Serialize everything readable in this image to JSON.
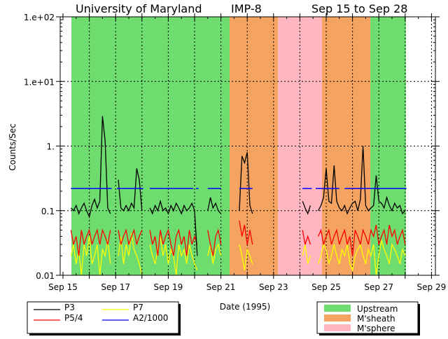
{
  "chart_data": {
    "type": "line",
    "title_parts": [
      "University of Maryland",
      "IMP-8",
      "Sep 15 to Sep 28"
    ],
    "xlabel": "Date (1995)",
    "ylabel": "Counts/Sec",
    "yscale": "log",
    "ylim": [
      0.01,
      100
    ],
    "xlim_days": [
      0,
      14
    ],
    "yticks": [
      {
        "v": 100,
        "label": "1.e+02"
      },
      {
        "v": 10,
        "label": "1.e+01"
      },
      {
        "v": 1,
        "label": "1."
      },
      {
        "v": 0.1,
        "label": "0.1"
      },
      {
        "v": 0.01,
        "label": "0.01"
      }
    ],
    "xticks": [
      {
        "d": 0,
        "label": "Sep 15"
      },
      {
        "d": 2,
        "label": "Sep 17"
      },
      {
        "d": 4,
        "label": "Sep 19"
      },
      {
        "d": 6,
        "label": "Sep 21"
      },
      {
        "d": 8,
        "label": "Sep 23"
      },
      {
        "d": 10,
        "label": "Sep 25"
      },
      {
        "d": 12,
        "label": "Sep 27"
      },
      {
        "d": 14,
        "label": "Sep 29"
      }
    ],
    "grid": true,
    "regions": [
      {
        "type": "Upstream",
        "from": 0.32,
        "to": 6.33
      },
      {
        "type": "M'sheath",
        "from": 6.33,
        "to": 8.17
      },
      {
        "type": "M'sphere",
        "from": 8.17,
        "to": 9.84
      },
      {
        "type": "M'sheath",
        "from": 9.84,
        "to": 11.68
      },
      {
        "type": "Upstream",
        "from": 11.68,
        "to": 13.03
      }
    ],
    "region_legend": [
      {
        "label": "Upstream",
        "color": "#6edc6e"
      },
      {
        "label": "M'sheath",
        "color": "#f4a460"
      },
      {
        "label": "M'sphere",
        "color": "#ffb6c1"
      }
    ],
    "x_start_days": 0.3,
    "x_step_days": 0.1,
    "series": [
      {
        "name": "P3",
        "color": "#000000",
        "values": [
          0.11,
          0.1,
          0.12,
          0.09,
          0.11,
          0.13,
          0.1,
          0.08,
          0.12,
          0.15,
          0.11,
          0.14,
          2.9,
          1.2,
          0.11,
          0.09,
          null,
          null,
          0.3,
          0.11,
          0.1,
          0.12,
          0.1,
          0.13,
          0.11,
          0.45,
          0.3,
          0.1,
          null,
          null,
          0.11,
          0.09,
          0.12,
          0.1,
          0.14,
          0.1,
          0.11,
          0.09,
          0.12,
          0.1,
          0.13,
          0.11,
          0.09,
          0.12,
          0.1,
          0.11,
          0.13,
          0.1,
          0.02,
          null,
          null,
          null,
          0.1,
          0.16,
          0.11,
          0.13,
          0.1,
          0.09,
          null,
          null,
          null,
          null,
          null,
          null,
          0.1,
          0.7,
          0.55,
          0.8,
          0.12,
          0.09,
          null,
          null,
          null,
          null,
          null,
          null,
          null,
          null,
          null,
          null,
          null,
          null,
          null,
          null,
          null,
          null,
          null,
          null,
          0.14,
          0.11,
          0.09,
          0.12,
          null,
          null,
          0.1,
          0.12,
          0.16,
          0.45,
          0.14,
          0.13,
          0.5,
          0.14,
          0.11,
          0.1,
          0.12,
          0.09,
          0.11,
          0.13,
          0.14,
          0.1,
          0.15,
          1.0,
          0.12,
          0.1,
          0.11,
          0.12,
          0.35,
          0.14,
          0.13,
          0.11,
          0.16,
          0.12,
          0.1,
          0.13,
          0.11,
          0.12,
          0.09,
          0.1
        ]
      },
      {
        "name": "P5/4",
        "color": "#ff0000",
        "values": [
          0.05,
          0.03,
          0.04,
          0.02,
          0.05,
          0.03,
          0.04,
          0.05,
          0.03,
          0.04,
          0.05,
          0.03,
          0.05,
          0.04,
          0.03,
          0.05,
          null,
          null,
          0.05,
          0.03,
          0.04,
          0.05,
          0.03,
          0.04,
          0.05,
          0.03,
          0.04,
          0.05,
          null,
          null,
          0.05,
          0.03,
          0.04,
          0.02,
          0.05,
          0.03,
          0.04,
          0.05,
          0.03,
          0.02,
          0.04,
          0.05,
          0.03,
          0.04,
          0.02,
          0.05,
          0.03,
          0.04,
          0.03,
          null,
          null,
          null,
          0.05,
          0.03,
          0.02,
          0.04,
          0.05,
          0.03,
          null,
          null,
          null,
          null,
          null,
          null,
          0.07,
          0.04,
          0.06,
          0.03,
          0.05,
          0.03,
          null,
          null,
          null,
          null,
          null,
          null,
          null,
          null,
          null,
          null,
          null,
          null,
          null,
          null,
          null,
          null,
          null,
          null,
          0.05,
          0.03,
          0.04,
          0.03,
          null,
          null,
          0.04,
          0.05,
          0.03,
          0.04,
          0.05,
          0.03,
          0.04,
          0.05,
          0.03,
          0.04,
          0.05,
          0.03,
          0.04,
          0.02,
          0.05,
          0.04,
          0.03,
          0.05,
          0.04,
          0.03,
          0.05,
          0.04,
          0.06,
          0.03,
          0.04,
          0.05,
          0.03,
          0.06,
          0.04,
          0.05,
          0.03,
          0.04,
          0.05,
          0.03
        ]
      },
      {
        "name": "P7",
        "color": "#ffff00",
        "values": [
          0.02,
          0.03,
          0.015,
          0.025,
          0.01,
          0.03,
          0.02,
          0.04,
          0.015,
          0.02,
          0.03,
          0.01,
          0.025,
          0.02,
          0.035,
          0.015,
          null,
          null,
          0.02,
          0.04,
          0.015,
          0.03,
          0.02,
          0.045,
          0.025,
          0.02,
          0.015,
          0.01,
          null,
          null,
          0.03,
          0.02,
          0.015,
          0.025,
          0.04,
          0.02,
          0.03,
          0.015,
          0.025,
          0.02,
          0.01,
          0.03,
          0.02,
          0.025,
          0.015,
          0.03,
          0.02,
          0.015,
          0.012,
          null,
          null,
          null,
          0.02,
          0.03,
          0.015,
          0.025,
          0.03,
          0.02,
          null,
          null,
          null,
          null,
          null,
          null,
          0.03,
          0.02,
          0.012,
          0.025,
          0.02,
          0.015,
          null,
          null,
          null,
          null,
          null,
          null,
          null,
          null,
          null,
          null,
          null,
          null,
          null,
          null,
          null,
          null,
          null,
          null,
          0.02,
          0.03,
          0.015,
          0.02,
          null,
          null,
          0.015,
          0.02,
          0.03,
          0.025,
          0.015,
          0.02,
          0.03,
          0.02,
          0.015,
          0.025,
          0.02,
          0.03,
          0.015,
          0.012,
          0.02,
          0.025,
          0.03,
          0.02,
          0.015,
          0.025,
          0.02,
          0.03,
          0.01,
          0.02,
          0.035,
          0.025,
          0.02,
          0.015,
          0.03,
          0.025,
          0.02,
          0.015,
          0.025,
          0.02
        ]
      }
    ],
    "a2_series": {
      "name": "A2/1000",
      "color": "#0000ff",
      "segments": [
        [
          0.3,
          1.85,
          0.22
        ],
        [
          2.05,
          3.05,
          0.22
        ],
        [
          3.3,
          4.95,
          0.22
        ],
        [
          5.05,
          5.15,
          0.22
        ],
        [
          5.5,
          6.0,
          0.22
        ],
        [
          6.7,
          7.2,
          0.22
        ],
        [
          9.1,
          9.45,
          0.22
        ],
        [
          9.6,
          10.5,
          0.22
        ],
        [
          10.7,
          13.05,
          0.22
        ]
      ]
    },
    "series_legend": [
      {
        "label": "P3",
        "color": "#000000"
      },
      {
        "label": "P7",
        "color": "#ffff00"
      },
      {
        "label": "P5/4",
        "color": "#ff0000"
      },
      {
        "label": "A2/1000",
        "color": "#0000ff"
      }
    ]
  }
}
